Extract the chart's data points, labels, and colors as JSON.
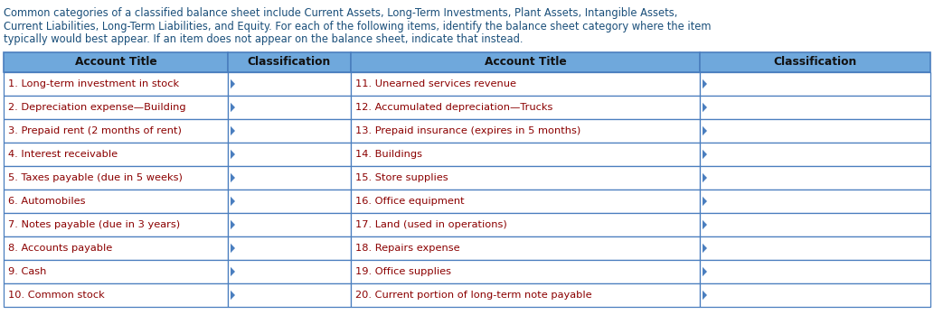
{
  "intro_text_lines": [
    "Common categories of a classified balance sheet include Current Assets, Long-Term Investments, Plant Assets, Intangible Assets,",
    "Current Liabilities, Long-Term Liabilities, and Equity. For each of the following items, identify the balance sheet category where the item",
    "typically would best appear. If an item does not appear on the balance sheet, indicate that instead."
  ],
  "intro_color": "#1a4f7a",
  "header_bg": "#6fa8dc",
  "border_color": "#4a7ebf",
  "text_color": "#8B0000",
  "headers": [
    "Account Title",
    "Classification",
    "Account Title",
    "Classification"
  ],
  "left_items": [
    "1. Long-term investment in stock",
    "2. Depreciation expense—Building",
    "3. Prepaid rent (2 months of rent)",
    "4. Interest receivable",
    "5. Taxes payable (due in 5 weeks)",
    "6. Automobiles",
    "7. Notes payable (due in 3 years)",
    "8. Accounts payable",
    "9. Cash",
    "10. Common stock"
  ],
  "right_items": [
    "11. Unearned services revenue",
    "12. Accumulated depreciation—Trucks",
    "13. Prepaid insurance (expires in 5 months)",
    "14. Buildings",
    "15. Store supplies",
    "16. Office equipment",
    "17. Land (used in operations)",
    "18. Repairs expense",
    "19. Office supplies",
    "20. Current portion of long-term note payable"
  ]
}
